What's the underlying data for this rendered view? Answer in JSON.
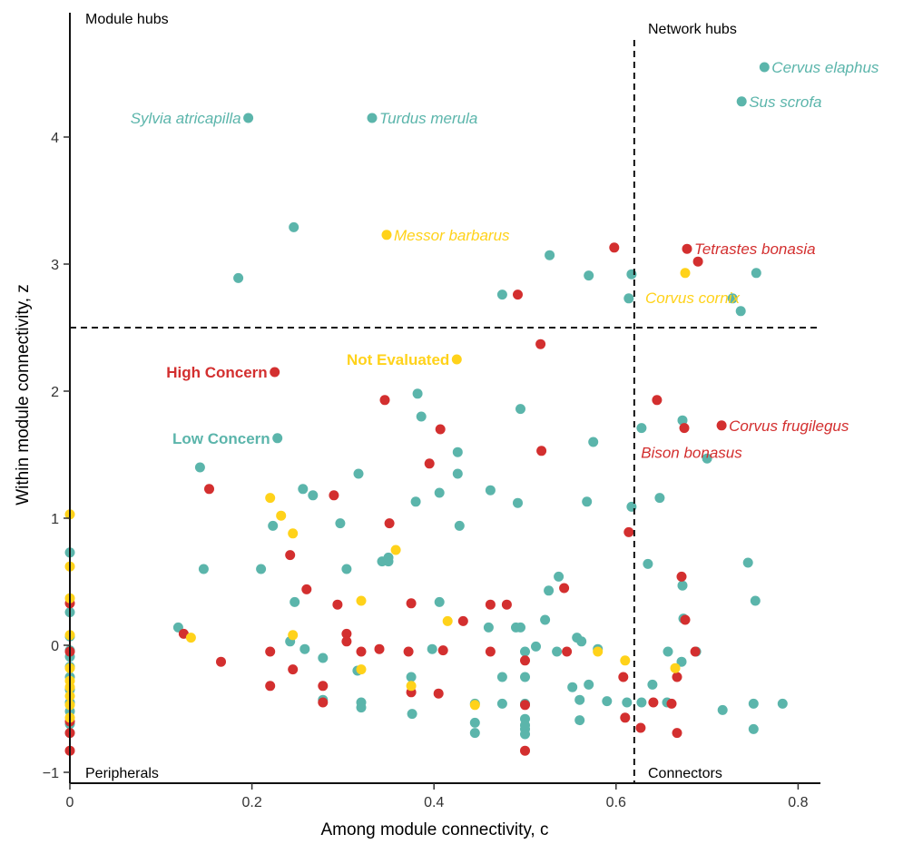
{
  "chart_data": {
    "type": "scatter",
    "xlabel": "Among module connectivity, c",
    "ylabel": "Within module connectivity, z",
    "xlim": [
      0,
      0.82
    ],
    "ylim": [
      -1.1,
      4.95
    ],
    "x_ticks": [
      "0",
      "0.2",
      "0.4",
      "0.6",
      "0.8"
    ],
    "y_ticks": [
      "−1",
      "0",
      "1",
      "2",
      "3",
      "4"
    ],
    "x_tick_values": [
      0,
      0.2,
      0.4,
      0.6,
      0.8
    ],
    "y_tick_values": [
      -1,
      0,
      1,
      2,
      3,
      4
    ],
    "grid": false,
    "thresholds": {
      "c": 0.62,
      "z": 2.5
    },
    "quadrant_labels": {
      "top_left": "Module hubs",
      "top_right": "Network hubs",
      "bottom_left": "Peripherals",
      "bottom_right": "Connectors"
    },
    "colors": {
      "low": "#5bb5ab",
      "high": "#d32f2f",
      "ne": "#ffd21a"
    },
    "legend": [
      {
        "key": "high",
        "label": "High Concern",
        "x": 0.225,
        "y": 2.15
      },
      {
        "key": "ne",
        "label": "Not Evaluated",
        "x": 0.425,
        "y": 2.25
      },
      {
        "key": "low",
        "label": "Low Concern",
        "x": 0.228,
        "y": 1.63
      }
    ],
    "labeled_points": [
      {
        "label": "Sylvia atricapilla",
        "x": 0.196,
        "y": 4.15,
        "c": "low",
        "side": "left"
      },
      {
        "label": "Turdus merula",
        "x": 0.332,
        "y": 4.15,
        "c": "low",
        "side": "right"
      },
      {
        "label": "Cervus elaphus",
        "x": 0.763,
        "y": 4.55,
        "c": "low",
        "side": "right"
      },
      {
        "label": "Sus scrofa",
        "x": 0.738,
        "y": 4.28,
        "c": "low",
        "side": "right"
      },
      {
        "label": "Messor barbarus",
        "x": 0.348,
        "y": 3.23,
        "c": "ne",
        "side": "right"
      },
      {
        "label": "Tetrastes bonasia",
        "x": 0.678,
        "y": 3.12,
        "c": "high",
        "side": "right"
      },
      {
        "label": "Corvus cornix",
        "x": 0.676,
        "y": 2.93,
        "c": "ne",
        "side": "below"
      },
      {
        "label": "Corvus frugilegus",
        "x": 0.716,
        "y": 1.73,
        "c": "high",
        "side": "right"
      },
      {
        "label": "Bison bonasus",
        "x": 0.675,
        "y": 1.71,
        "c": "high",
        "side": "below"
      }
    ],
    "series": [
      {
        "key": "low",
        "points": [
          [
            0.185,
            2.89
          ],
          [
            0.246,
            3.29
          ],
          [
            0.475,
            2.76
          ],
          [
            0.527,
            3.07
          ],
          [
            0.57,
            2.91
          ],
          [
            0.617,
            2.92
          ],
          [
            0.614,
            2.73
          ],
          [
            0.728,
            2.73
          ],
          [
            0.754,
            2.93
          ],
          [
            0.737,
            2.63
          ],
          [
            0.382,
            1.98
          ],
          [
            0.386,
            1.8
          ],
          [
            0.426,
            1.52
          ],
          [
            0.426,
            1.35
          ],
          [
            0.406,
            1.2
          ],
          [
            0.38,
            1.13
          ],
          [
            0.428,
            0.94
          ],
          [
            0.462,
            1.22
          ],
          [
            0.495,
            1.86
          ],
          [
            0.492,
            1.12
          ],
          [
            0.575,
            1.6
          ],
          [
            0.568,
            1.13
          ],
          [
            0.617,
            1.09
          ],
          [
            0.628,
            1.71
          ],
          [
            0.673,
            1.77
          ],
          [
            0.7,
            1.47
          ],
          [
            0.648,
            1.16
          ],
          [
            0.143,
            1.4
          ],
          [
            0.317,
            1.35
          ],
          [
            0.256,
            1.23
          ],
          [
            0.267,
            1.18
          ],
          [
            0.297,
            0.96
          ],
          [
            0.223,
            0.94
          ],
          [
            0.147,
            0.6
          ],
          [
            0.21,
            0.6
          ],
          [
            0.304,
            0.6
          ],
          [
            0.343,
            0.66
          ],
          [
            0.35,
            0.66
          ],
          [
            0.35,
            0.69
          ],
          [
            0.537,
            0.54
          ],
          [
            0.526,
            0.43
          ],
          [
            0.406,
            0.34
          ],
          [
            0.247,
            0.34
          ],
          [
            0.635,
            0.64
          ],
          [
            0.673,
            0.47
          ],
          [
            0.753,
            0.35
          ],
          [
            0.745,
            0.65
          ],
          [
            0.119,
            0.14
          ],
          [
            0.242,
            0.03
          ],
          [
            0.258,
            -0.03
          ],
          [
            0.278,
            -0.1
          ],
          [
            0.316,
            -0.2
          ],
          [
            0.375,
            -0.25
          ],
          [
            0.398,
            -0.03
          ],
          [
            0.46,
            0.14
          ],
          [
            0.49,
            0.14
          ],
          [
            0.495,
            0.14
          ],
          [
            0.522,
            0.2
          ],
          [
            0.5,
            -0.05
          ],
          [
            0.512,
            -0.01
          ],
          [
            0.535,
            -0.05
          ],
          [
            0.557,
            0.06
          ],
          [
            0.562,
            0.03
          ],
          [
            0.58,
            -0.03
          ],
          [
            0.475,
            -0.25
          ],
          [
            0.5,
            -0.25
          ],
          [
            0.552,
            -0.33
          ],
          [
            0.57,
            -0.31
          ],
          [
            0.56,
            -0.43
          ],
          [
            0.59,
            -0.44
          ],
          [
            0.612,
            -0.45
          ],
          [
            0.628,
            -0.45
          ],
          [
            0.64,
            -0.31
          ],
          [
            0.657,
            -0.05
          ],
          [
            0.656,
            -0.45
          ],
          [
            0.674,
            0.21
          ],
          [
            0.688,
            -0.05
          ],
          [
            0.672,
            -0.13
          ],
          [
            0.717,
            -0.51
          ],
          [
            0.751,
            -0.46
          ],
          [
            0.751,
            -0.66
          ],
          [
            0.783,
            -0.46
          ],
          [
            0.278,
            -0.43
          ],
          [
            0.32,
            -0.45
          ],
          [
            0.32,
            -0.49
          ],
          [
            0.376,
            -0.54
          ],
          [
            0.445,
            -0.46
          ],
          [
            0.445,
            -0.61
          ],
          [
            0.445,
            -0.69
          ],
          [
            0.475,
            -0.46
          ],
          [
            0.5,
            -0.46
          ],
          [
            0.5,
            -0.58
          ],
          [
            0.5,
            -0.63
          ],
          [
            0.5,
            -0.66
          ],
          [
            0.5,
            -0.7
          ],
          [
            0.56,
            -0.59
          ],
          [
            0,
            0.73
          ],
          [
            0,
            0.26
          ],
          [
            0,
            0.07
          ],
          [
            0,
            -0.04
          ],
          [
            0,
            -0.09
          ],
          [
            0,
            -0.17
          ],
          [
            0,
            -0.25
          ],
          [
            0,
            -0.35
          ],
          [
            0,
            -0.45
          ],
          [
            0,
            -0.52
          ],
          [
            0,
            -0.62
          ],
          [
            0,
            -0.69
          ]
        ]
      },
      {
        "key": "high",
        "points": [
          [
            0.492,
            2.76
          ],
          [
            0.598,
            3.13
          ],
          [
            0.69,
            3.02
          ],
          [
            0.517,
            2.37
          ],
          [
            0.346,
            1.93
          ],
          [
            0.407,
            1.7
          ],
          [
            0.395,
            1.43
          ],
          [
            0.518,
            1.53
          ],
          [
            0.645,
            1.93
          ],
          [
            0.614,
            0.89
          ],
          [
            0.153,
            1.23
          ],
          [
            0.29,
            1.18
          ],
          [
            0.351,
            0.96
          ],
          [
            0.242,
            0.71
          ],
          [
            0.26,
            0.44
          ],
          [
            0.294,
            0.32
          ],
          [
            0.375,
            0.33
          ],
          [
            0.432,
            0.19
          ],
          [
            0.462,
            0.32
          ],
          [
            0.48,
            0.32
          ],
          [
            0.543,
            0.45
          ],
          [
            0.672,
            0.54
          ],
          [
            0.676,
            0.2
          ],
          [
            0.125,
            0.09
          ],
          [
            0.166,
            -0.13
          ],
          [
            0.22,
            -0.05
          ],
          [
            0.22,
            -0.32
          ],
          [
            0.245,
            -0.19
          ],
          [
            0.278,
            -0.32
          ],
          [
            0.304,
            0.09
          ],
          [
            0.304,
            0.03
          ],
          [
            0.32,
            -0.05
          ],
          [
            0.34,
            -0.03
          ],
          [
            0.372,
            -0.05
          ],
          [
            0.41,
            -0.04
          ],
          [
            0.462,
            -0.05
          ],
          [
            0.5,
            -0.12
          ],
          [
            0.546,
            -0.05
          ],
          [
            0.608,
            -0.25
          ],
          [
            0.687,
            -0.05
          ],
          [
            0.667,
            -0.25
          ],
          [
            0.375,
            -0.37
          ],
          [
            0.405,
            -0.38
          ],
          [
            0.5,
            -0.47
          ],
          [
            0.61,
            -0.57
          ],
          [
            0.627,
            -0.65
          ],
          [
            0.641,
            -0.45
          ],
          [
            0.661,
            -0.46
          ],
          [
            0.667,
            -0.69
          ],
          [
            0.278,
            -0.45
          ],
          [
            0.5,
            -0.83
          ],
          [
            0,
            0.33
          ],
          [
            0,
            -0.05
          ],
          [
            0,
            -0.6
          ],
          [
            0,
            -0.69
          ],
          [
            0,
            -0.83
          ]
        ]
      },
      {
        "key": "ne",
        "points": [
          [
            0.22,
            1.16
          ],
          [
            0.232,
            1.02
          ],
          [
            0.245,
            0.88
          ],
          [
            0.358,
            0.75
          ],
          [
            0.32,
            0.35
          ],
          [
            0.415,
            0.19
          ],
          [
            0.133,
            0.06
          ],
          [
            0.245,
            0.08
          ],
          [
            0.32,
            -0.19
          ],
          [
            0.375,
            -0.32
          ],
          [
            0.58,
            -0.05
          ],
          [
            0.61,
            -0.12
          ],
          [
            0.665,
            -0.18
          ],
          [
            0.445,
            -0.47
          ],
          [
            0,
            1.03
          ],
          [
            0,
            0.62
          ],
          [
            0,
            0.37
          ],
          [
            0,
            0.08
          ],
          [
            0,
            -0.18
          ],
          [
            0,
            -0.28
          ],
          [
            0,
            -0.33
          ],
          [
            0,
            -0.4
          ],
          [
            0,
            -0.47
          ],
          [
            0,
            -0.57
          ]
        ]
      }
    ]
  }
}
